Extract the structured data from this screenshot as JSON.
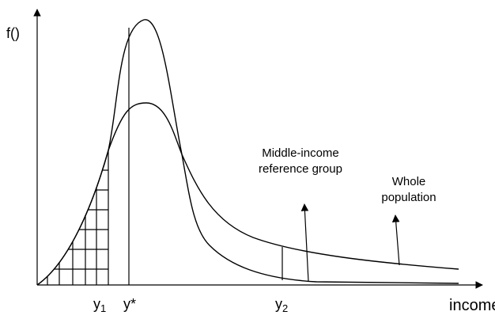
{
  "axes": {
    "y_label": "f()",
    "x_label": "income"
  },
  "markers": [
    {
      "label": "y",
      "subscript": "1"
    },
    {
      "label": "y*"
    },
    {
      "label": "y",
      "subscript": "2"
    }
  ],
  "annotations": [
    {
      "lines": [
        "Middle-income",
        "reference group"
      ]
    },
    {
      "lines": [
        "Whole",
        "population"
      ]
    }
  ]
}
